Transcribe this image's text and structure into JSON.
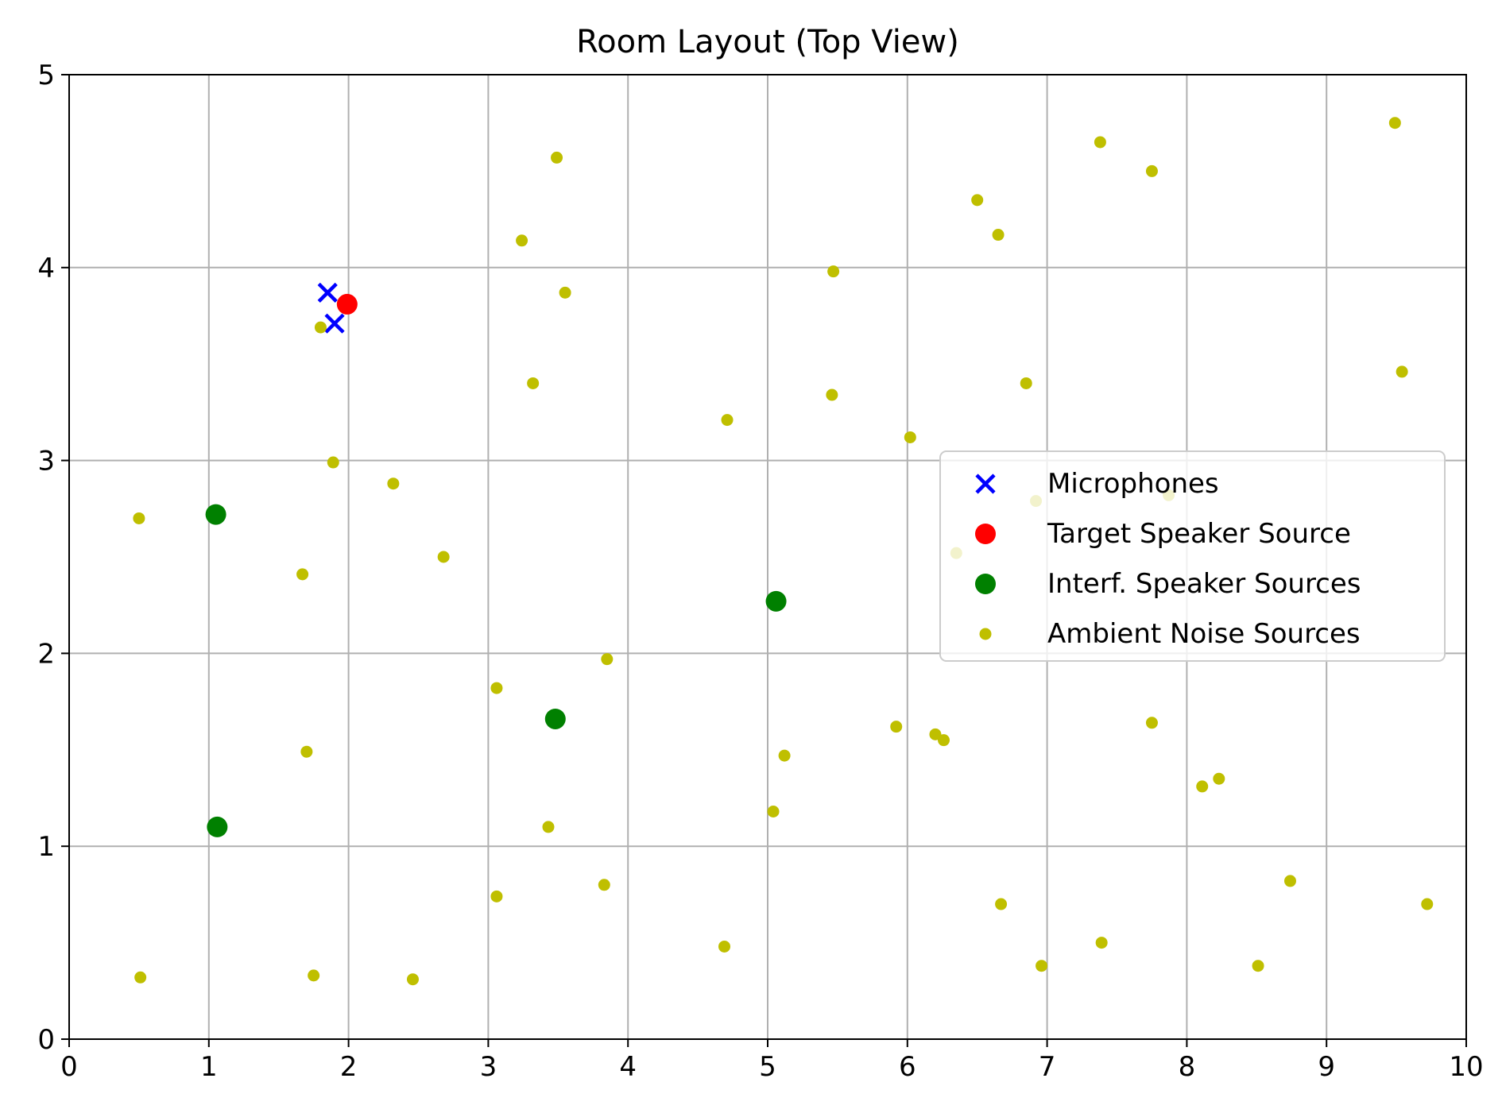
{
  "chart_data": {
    "type": "scatter",
    "title": "Room Layout (Top View)",
    "xlabel": "",
    "ylabel": "",
    "xlim": [
      0,
      10
    ],
    "ylim": [
      0,
      5
    ],
    "xticks": [
      "0",
      "1",
      "2",
      "3",
      "4",
      "5",
      "6",
      "7",
      "8",
      "9",
      "10"
    ],
    "yticks": [
      "0",
      "1",
      "2",
      "3",
      "4",
      "5"
    ],
    "grid": true,
    "legend_position": "center-right",
    "series": [
      {
        "name": "Microphones",
        "marker": "x",
        "color": "#0000ff",
        "points": [
          [
            1.85,
            3.87
          ],
          [
            1.9,
            3.71
          ]
        ]
      },
      {
        "name": "Target Speaker Source",
        "marker": "circle",
        "color": "#ff0000",
        "points": [
          [
            1.99,
            3.81
          ]
        ]
      },
      {
        "name": "Interf. Speaker Sources",
        "marker": "circle",
        "color": "#008000",
        "points": [
          [
            1.05,
            2.72
          ],
          [
            5.06,
            2.27
          ],
          [
            3.48,
            1.66
          ],
          [
            1.06,
            1.1
          ]
        ]
      },
      {
        "name": "Ambient Noise Sources",
        "marker": "dot",
        "color": "#bfbf00",
        "points": [
          [
            9.49,
            4.75
          ],
          [
            3.49,
            4.57
          ],
          [
            7.38,
            4.65
          ],
          [
            7.75,
            4.5
          ],
          [
            6.5,
            4.35
          ],
          [
            6.65,
            4.17
          ],
          [
            3.24,
            4.14
          ],
          [
            5.47,
            3.98
          ],
          [
            3.55,
            3.87
          ],
          [
            1.8,
            3.69
          ],
          [
            3.32,
            3.4
          ],
          [
            6.85,
            3.4
          ],
          [
            9.54,
            3.46
          ],
          [
            5.46,
            3.34
          ],
          [
            4.71,
            3.21
          ],
          [
            6.02,
            3.12
          ],
          [
            1.89,
            2.99
          ],
          [
            2.32,
            2.88
          ],
          [
            6.92,
            2.79
          ],
          [
            7.87,
            2.82
          ],
          [
            0.5,
            2.7
          ],
          [
            6.35,
            2.52
          ],
          [
            2.68,
            2.5
          ],
          [
            1.67,
            2.41
          ],
          [
            3.85,
            1.97
          ],
          [
            3.06,
            1.82
          ],
          [
            7.75,
            1.64
          ],
          [
            5.92,
            1.62
          ],
          [
            6.2,
            1.58
          ],
          [
            6.26,
            1.55
          ],
          [
            1.7,
            1.49
          ],
          [
            5.12,
            1.47
          ],
          [
            8.23,
            1.35
          ],
          [
            8.11,
            1.31
          ],
          [
            5.04,
            1.18
          ],
          [
            3.43,
            1.1
          ],
          [
            8.74,
            0.82
          ],
          [
            3.83,
            0.8
          ],
          [
            3.06,
            0.74
          ],
          [
            6.67,
            0.7
          ],
          [
            9.72,
            0.7
          ],
          [
            7.39,
            0.5
          ],
          [
            4.69,
            0.48
          ],
          [
            6.96,
            0.38
          ],
          [
            8.51,
            0.38
          ],
          [
            0.51,
            0.32
          ],
          [
            1.75,
            0.33
          ],
          [
            2.46,
            0.31
          ]
        ]
      }
    ]
  }
}
